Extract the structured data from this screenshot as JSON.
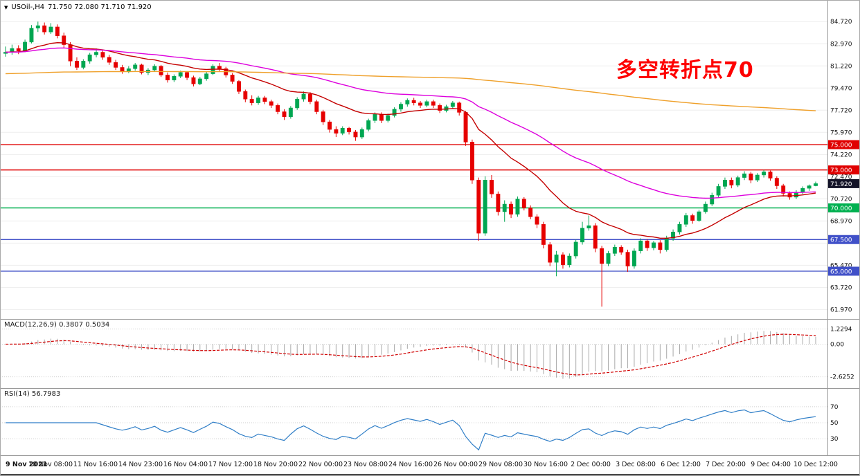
{
  "header": {
    "dropdown_icon": "▼",
    "symbol_timeframe": "USOil-,H4",
    "ohlc_text": "71.750 72.080 71.710 71.920"
  },
  "annotation": {
    "text": "多空转折点70",
    "color": "#fe0000"
  },
  "colors": {
    "bull": "#00a651",
    "bear": "#e60000",
    "ma_fast": "#c40000",
    "ma_mid": "#dd00dd",
    "ma_slow": "#efa02a",
    "macd_hist": "#a8a8a8",
    "macd_signal": "#d00000",
    "rsi_line": "#2f7ec7",
    "grid": "#ededed",
    "indicator_grid": "#cfcfcf",
    "scale_text": "#111111",
    "separator": "#9a9a9a"
  },
  "chart_data": [
    {
      "type": "candlestick",
      "title": "USOil-,H4",
      "symbol": "USOil-",
      "timeframe": "H4",
      "last_ohlc": {
        "open": 71.75,
        "high": 72.08,
        "low": 71.71,
        "close": 71.92
      },
      "ylim": [
        61.5,
        86.1
      ],
      "y_ticks": [
        "84.720",
        "82.970",
        "81.220",
        "79.470",
        "77.720",
        "75.970",
        "74.220",
        "72.470",
        "70.720",
        "68.970",
        "67.220",
        "65.470",
        "63.720",
        "61.970"
      ],
      "x_labels": [
        "9 Nov 2021",
        "10 Nov 08:00",
        "11 Nov 16:00",
        "14 Nov 23:00",
        "16 Nov 04:00",
        "17 Nov 12:00",
        "18 Nov 20:00",
        "22 Nov 00:00",
        "23 Nov 08:00",
        "24 Nov 16:00",
        "26 Nov 00:00",
        "29 Nov 08:00",
        "30 Nov 16:00",
        "2 Dec 00:00",
        "3 Dec 08:00",
        "6 Dec 12:00",
        "7 Dec 20:00",
        "9 Dec 04:00",
        "10 Dec 12:00"
      ],
      "levels": [
        {
          "value": 75.0,
          "label": "75.000",
          "color": "#e00000"
        },
        {
          "value": 73.0,
          "label": "73.000",
          "color": "#e00000"
        },
        {
          "value": 70.0,
          "label": "70.000",
          "color": "#00b050"
        },
        {
          "value": 67.5,
          "label": "67.500",
          "color": "#4050c8"
        },
        {
          "value": 65.0,
          "label": "65.000",
          "color": "#4050c8"
        }
      ],
      "current_price": {
        "value": 71.92,
        "label": "71.920",
        "bg": "#141428"
      },
      "moving_averages": [
        {
          "name": "ma-fast-red",
          "period": 20,
          "color": "#c40000"
        },
        {
          "name": "ma-mid-magenta",
          "period": 55,
          "color": "#dd00dd"
        },
        {
          "name": "ma-slow-orange",
          "period": 400,
          "seed": 80.6,
          "color": "#efa02a"
        }
      ],
      "candles": [
        [
          82.2,
          82.75,
          81.95,
          82.3
        ],
        [
          82.3,
          82.9,
          82.1,
          82.6
        ],
        [
          82.6,
          82.85,
          82.15,
          82.4
        ],
        [
          82.4,
          83.3,
          82.3,
          83.1
        ],
        [
          83.1,
          84.45,
          83.0,
          84.2
        ],
        [
          84.2,
          84.72,
          83.9,
          84.4
        ],
        [
          84.4,
          84.65,
          83.7,
          83.9
        ],
        [
          83.9,
          84.6,
          83.75,
          84.3
        ],
        [
          84.3,
          84.5,
          83.4,
          83.6
        ],
        [
          83.6,
          83.85,
          82.6,
          82.9
        ],
        [
          82.9,
          83.1,
          81.2,
          81.6
        ],
        [
          81.6,
          81.9,
          80.9,
          81.1
        ],
        [
          81.1,
          81.75,
          80.95,
          81.6
        ],
        [
          81.6,
          82.25,
          81.4,
          82.1
        ],
        [
          82.1,
          82.6,
          81.9,
          82.3
        ],
        [
          82.3,
          82.45,
          81.7,
          81.9
        ],
        [
          81.9,
          82.1,
          81.3,
          81.5
        ],
        [
          81.5,
          81.7,
          80.9,
          81.1
        ],
        [
          81.1,
          81.3,
          80.6,
          80.8
        ],
        [
          80.8,
          81.2,
          80.65,
          81.0
        ],
        [
          81.0,
          81.45,
          80.85,
          81.3
        ],
        [
          81.3,
          81.4,
          80.55,
          80.7
        ],
        [
          80.7,
          81.05,
          80.5,
          80.9
        ],
        [
          80.9,
          81.35,
          80.75,
          81.2
        ],
        [
          81.2,
          81.3,
          80.35,
          80.5
        ],
        [
          80.5,
          80.7,
          79.9,
          80.1
        ],
        [
          80.1,
          80.55,
          79.95,
          80.4
        ],
        [
          80.4,
          80.85,
          80.25,
          80.7
        ],
        [
          80.7,
          80.8,
          80.1,
          80.3
        ],
        [
          80.3,
          80.45,
          79.6,
          79.8
        ],
        [
          79.8,
          80.35,
          79.7,
          80.2
        ],
        [
          80.2,
          80.75,
          80.05,
          80.6
        ],
        [
          80.6,
          81.35,
          80.5,
          81.2
        ],
        [
          81.2,
          81.45,
          80.8,
          81.0
        ],
        [
          81.0,
          81.15,
          80.3,
          80.5
        ],
        [
          80.5,
          80.65,
          79.8,
          80.0
        ],
        [
          80.0,
          80.1,
          79.0,
          79.2
        ],
        [
          79.2,
          79.35,
          78.35,
          78.6
        ],
        [
          78.6,
          78.9,
          78.1,
          78.3
        ],
        [
          78.3,
          78.85,
          78.15,
          78.7
        ],
        [
          78.7,
          78.85,
          78.2,
          78.4
        ],
        [
          78.4,
          78.55,
          77.9,
          78.1
        ],
        [
          78.1,
          78.25,
          77.4,
          77.6
        ],
        [
          77.6,
          77.8,
          76.95,
          77.2
        ],
        [
          77.2,
          78.05,
          77.05,
          77.9
        ],
        [
          77.9,
          78.75,
          77.75,
          78.6
        ],
        [
          78.6,
          79.2,
          78.4,
          79.0
        ],
        [
          79.0,
          79.15,
          78.2,
          78.4
        ],
        [
          78.4,
          78.55,
          77.4,
          77.6
        ],
        [
          77.6,
          77.75,
          76.55,
          76.8
        ],
        [
          76.8,
          76.95,
          75.95,
          76.2
        ],
        [
          76.2,
          76.45,
          75.6,
          75.9
        ],
        [
          75.9,
          76.45,
          75.75,
          76.3
        ],
        [
          76.3,
          76.4,
          75.8,
          76.0
        ],
        [
          76.0,
          76.15,
          75.3,
          75.6
        ],
        [
          75.6,
          76.35,
          75.45,
          76.2
        ],
        [
          76.2,
          77.05,
          76.05,
          76.9
        ],
        [
          76.9,
          77.55,
          76.7,
          77.4
        ],
        [
          77.4,
          77.55,
          76.7,
          76.9
        ],
        [
          76.9,
          77.45,
          76.75,
          77.3
        ],
        [
          77.3,
          77.95,
          77.15,
          77.8
        ],
        [
          77.8,
          78.35,
          77.6,
          78.2
        ],
        [
          78.2,
          78.65,
          78.0,
          78.5
        ],
        [
          78.5,
          78.7,
          78.1,
          78.3
        ],
        [
          78.3,
          78.45,
          77.9,
          78.1
        ],
        [
          78.1,
          78.55,
          77.95,
          78.4
        ],
        [
          78.4,
          78.55,
          77.9,
          78.1
        ],
        [
          78.1,
          78.25,
          77.5,
          77.7
        ],
        [
          77.7,
          78.15,
          77.55,
          78.0
        ],
        [
          78.0,
          78.45,
          77.85,
          78.3
        ],
        [
          78.3,
          78.4,
          77.3,
          77.55
        ],
        [
          77.55,
          77.65,
          74.9,
          75.2
        ],
        [
          75.2,
          75.4,
          71.9,
          72.2
        ],
        [
          72.2,
          72.4,
          67.4,
          68.0
        ],
        [
          68.0,
          72.5,
          67.8,
          72.2
        ],
        [
          72.2,
          72.6,
          70.8,
          71.1
        ],
        [
          71.1,
          71.3,
          69.4,
          69.7
        ],
        [
          69.7,
          70.6,
          68.9,
          70.3
        ],
        [
          70.3,
          70.5,
          69.2,
          69.5
        ],
        [
          69.5,
          70.9,
          69.3,
          70.7
        ],
        [
          70.7,
          70.85,
          69.8,
          70.0
        ],
        [
          70.0,
          70.2,
          69.1,
          69.3
        ],
        [
          69.3,
          69.5,
          68.4,
          68.7
        ],
        [
          68.7,
          68.9,
          66.8,
          67.1
        ],
        [
          67.1,
          67.3,
          65.4,
          65.7
        ],
        [
          65.7,
          66.6,
          64.6,
          66.3
        ],
        [
          66.3,
          66.5,
          65.2,
          65.5
        ],
        [
          65.5,
          66.4,
          65.3,
          66.2
        ],
        [
          66.2,
          67.5,
          66.0,
          67.3
        ],
        [
          67.3,
          68.9,
          67.1,
          68.4
        ],
        [
          68.4,
          69.4,
          68.2,
          68.6
        ],
        [
          68.6,
          68.8,
          66.5,
          66.8
        ],
        [
          66.8,
          67.0,
          62.2,
          65.6
        ],
        [
          65.6,
          66.6,
          65.4,
          66.4
        ],
        [
          66.4,
          67.1,
          66.2,
          66.9
        ],
        [
          66.9,
          67.05,
          66.3,
          66.5
        ],
        [
          66.5,
          66.7,
          64.95,
          65.4
        ],
        [
          65.4,
          66.8,
          65.2,
          66.6
        ],
        [
          66.6,
          67.6,
          66.4,
          67.4
        ],
        [
          67.4,
          67.55,
          66.6,
          66.85
        ],
        [
          66.85,
          67.4,
          66.65,
          67.25
        ],
        [
          67.25,
          67.45,
          66.4,
          66.7
        ],
        [
          66.7,
          67.8,
          66.55,
          67.6
        ],
        [
          67.6,
          68.3,
          67.4,
          68.1
        ],
        [
          68.1,
          68.9,
          67.9,
          68.7
        ],
        [
          68.7,
          69.6,
          68.5,
          69.4
        ],
        [
          69.4,
          69.55,
          68.75,
          69.0
        ],
        [
          69.0,
          69.85,
          68.9,
          69.7
        ],
        [
          69.7,
          70.5,
          69.55,
          70.3
        ],
        [
          70.3,
          71.2,
          70.15,
          71.0
        ],
        [
          71.0,
          71.9,
          70.8,
          71.7
        ],
        [
          71.7,
          72.4,
          71.5,
          72.2
        ],
        [
          72.2,
          72.4,
          71.55,
          71.8
        ],
        [
          71.8,
          72.55,
          71.65,
          72.4
        ],
        [
          72.4,
          72.9,
          72.2,
          72.7
        ],
        [
          72.7,
          72.85,
          71.95,
          72.2
        ],
        [
          72.2,
          72.75,
          72.05,
          72.6
        ],
        [
          72.6,
          73.0,
          72.4,
          72.85
        ],
        [
          72.85,
          72.95,
          72.15,
          72.35
        ],
        [
          72.35,
          72.5,
          71.5,
          71.75
        ],
        [
          71.75,
          71.9,
          70.9,
          71.15
        ],
        [
          71.15,
          71.3,
          70.65,
          70.85
        ],
        [
          70.85,
          71.4,
          70.7,
          71.25
        ],
        [
          71.25,
          71.7,
          71.1,
          71.55
        ],
        [
          71.55,
          71.85,
          71.35,
          71.75
        ],
        [
          71.75,
          72.08,
          71.71,
          71.92
        ]
      ]
    },
    {
      "type": "bar",
      "name": "MACD",
      "label": "MACD(12,26,9) 0.3807 0.5034",
      "params": [
        12,
        26,
        9
      ],
      "current_values": {
        "macd": 0.3807,
        "signal": 0.5034
      },
      "ylim": [
        -3.2,
        1.7
      ],
      "y_ticks": [
        {
          "value": 1.2294,
          "label": "1.2294"
        },
        {
          "value": 0,
          "label": "0.00"
        },
        {
          "value": -2.6252,
          "label": "-2.6252"
        }
      ],
      "derived_from": "candles closes: histogram = EMA12-EMA26, signal = EMA9 of histogram"
    },
    {
      "type": "line",
      "name": "RSI",
      "label": "RSI(14) 56.7983",
      "period": 14,
      "current_value": 56.7983,
      "levels": [
        70,
        50,
        30
      ],
      "ylim": [
        12,
        88
      ],
      "derived_from": "candles closes, Wilder RSI(14)"
    }
  ]
}
